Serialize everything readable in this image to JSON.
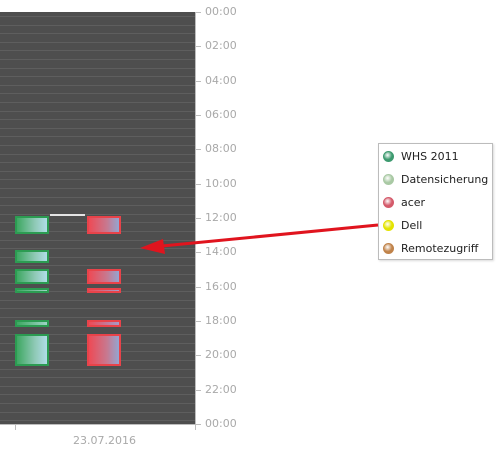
{
  "y_axis": {
    "labels": [
      "00:00",
      "02:00",
      "04:00",
      "06:00",
      "08:00",
      "10:00",
      "12:00",
      "14:00",
      "16:00",
      "18:00",
      "20:00",
      "22:00",
      "00:00"
    ]
  },
  "x_axis": {
    "label": "23.07.2016"
  },
  "legend": {
    "items": [
      {
        "label": "WHS 2011",
        "color": "#3d9a6f"
      },
      {
        "label": "Datensicherung",
        "color": "#a9c9a4"
      },
      {
        "label": "acer",
        "color": "#d45a6a"
      },
      {
        "label": "Dell",
        "color": "#e3e300"
      },
      {
        "label": "Remotezugriff",
        "color": "#c0834a"
      }
    ]
  },
  "annotation": {
    "arrow_color": "#e0141e"
  },
  "chart_data": {
    "type": "timeline",
    "date": "23.07.2016",
    "y_unit": "time of day (hours)",
    "ylim": [
      0,
      24
    ],
    "y_reversed": true,
    "series": [
      {
        "name": "WHS 2011",
        "color": "#3d9a6f",
        "column": 1,
        "intervals": [
          [
            11.9,
            12.95
          ],
          [
            13.85,
            14.65
          ],
          [
            14.95,
            15.85
          ],
          [
            16.05,
            16.35
          ],
          [
            17.95,
            18.35
          ],
          [
            18.75,
            20.65
          ]
        ]
      },
      {
        "name": "acer",
        "color": "#d45a6a",
        "column": 2,
        "intervals": [
          [
            11.9,
            12.95
          ],
          [
            14.95,
            15.85
          ],
          [
            16.05,
            16.35
          ],
          [
            17.95,
            18.35
          ],
          [
            18.75,
            20.65
          ]
        ]
      }
    ],
    "connections": [
      {
        "from_series": "WHS 2011",
        "to_series": "acer",
        "time": 11.95
      }
    ]
  }
}
